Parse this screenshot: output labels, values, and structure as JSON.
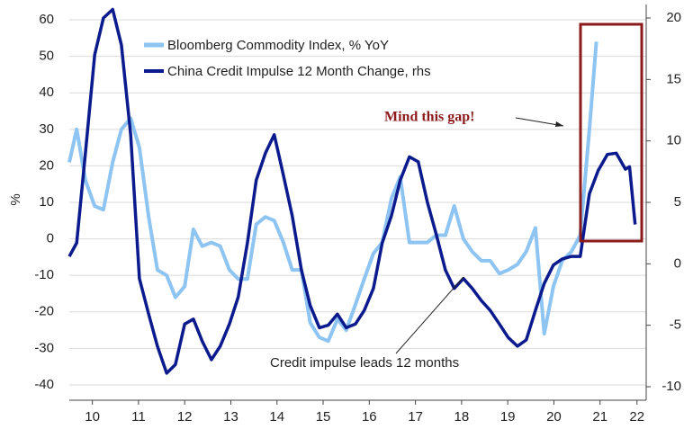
{
  "chart_data": {
    "type": "line",
    "y_label": "%",
    "xlim": [
      2010,
      2022.5
    ],
    "xticks": [
      {
        "value": 2010.5,
        "label": "10"
      },
      {
        "value": 2011.5,
        "label": "11"
      },
      {
        "value": 2012.5,
        "label": "12"
      },
      {
        "value": 2013.5,
        "label": "13"
      },
      {
        "value": 2014.5,
        "label": "14"
      },
      {
        "value": 2015.5,
        "label": "15"
      },
      {
        "value": 2016.5,
        "label": "16"
      },
      {
        "value": 2017.5,
        "label": "17"
      },
      {
        "value": 2018.5,
        "label": "18"
      },
      {
        "value": 2019.5,
        "label": "19"
      },
      {
        "value": 2020.5,
        "label": "20"
      },
      {
        "value": 2021.5,
        "label": "21"
      },
      {
        "value": 2022.3,
        "label": "22"
      }
    ],
    "ylim": [
      -44.2,
      64.2
    ],
    "yticks": [
      -40,
      -30,
      -20,
      -10,
      0,
      10,
      20,
      30,
      40,
      50,
      60
    ],
    "y2lim": [
      -11.1,
      21.1
    ],
    "y2ticks": [
      -10,
      -5,
      0,
      5,
      10,
      15,
      20
    ],
    "grid": true,
    "annotations": [
      "Mind this gap!",
      "Credit impulse leads 12 months"
    ],
    "series": [
      {
        "name": "Bloomberg Commodity Index, % YoY",
        "color": "#8ec4f2",
        "axis": "y",
        "x": [
          2010.0,
          2010.16,
          2010.35,
          2010.55,
          2010.74,
          2010.94,
          2011.13,
          2011.33,
          2011.52,
          2011.72,
          2011.91,
          2012.11,
          2012.3,
          2012.5,
          2012.69,
          2012.88,
          2013.08,
          2013.27,
          2013.47,
          2013.66,
          2013.86,
          2014.05,
          2014.25,
          2014.44,
          2014.64,
          2014.83,
          2015.03,
          2015.22,
          2015.42,
          2015.61,
          2015.81,
          2016.0,
          2016.2,
          2016.39,
          2016.59,
          2016.78,
          2016.98,
          2017.17,
          2017.37,
          2017.56,
          2017.76,
          2017.95,
          2018.15,
          2018.34,
          2018.54,
          2018.73,
          2018.93,
          2019.12,
          2019.32,
          2019.51,
          2019.71,
          2019.9,
          2020.1,
          2020.29,
          2020.49,
          2020.68,
          2020.88,
          2021.07,
          2021.27,
          2021.42
        ],
        "values": [
          21,
          30,
          16,
          9,
          8,
          21,
          30,
          33,
          25,
          6,
          -8.5,
          -10,
          -16,
          -13,
          2.6,
          -2,
          -1,
          -2,
          -8.5,
          -11,
          -11,
          4,
          6,
          5,
          -1,
          -8.5,
          -8.5,
          -23,
          -27,
          -28,
          -22,
          -25,
          -18,
          -11,
          -4,
          -1,
          11,
          17,
          -1,
          -1,
          -1,
          1,
          1,
          9,
          0,
          -3.5,
          -6,
          -6,
          -9.5,
          -8.5,
          -7,
          -3.5,
          3,
          -26,
          -13,
          -6,
          -3.5,
          1,
          30,
          54
        ]
      },
      {
        "name": "China Credit Impulse 12 Month Change, rhs",
        "color": "#0b1a8c",
        "axis": "y2",
        "x": [
          2010.0,
          2010.16,
          2010.35,
          2010.55,
          2010.74,
          2010.94,
          2011.13,
          2011.33,
          2011.52,
          2011.72,
          2011.91,
          2012.11,
          2012.3,
          2012.5,
          2012.69,
          2012.88,
          2013.08,
          2013.27,
          2013.47,
          2013.66,
          2013.86,
          2014.05,
          2014.25,
          2014.44,
          2014.64,
          2014.83,
          2015.03,
          2015.22,
          2015.42,
          2015.61,
          2015.81,
          2016.0,
          2016.2,
          2016.39,
          2016.59,
          2016.78,
          2016.98,
          2017.17,
          2017.37,
          2017.56,
          2017.76,
          2017.95,
          2018.15,
          2018.34,
          2018.54,
          2018.73,
          2018.93,
          2019.12,
          2019.32,
          2019.51,
          2019.71,
          2019.9,
          2020.1,
          2020.29,
          2020.49,
          2020.68,
          2020.88,
          2021.07,
          2021.27,
          2021.46,
          2021.66,
          2021.85,
          2022.05,
          2022.14,
          2022.26
        ],
        "values": [
          0.6,
          1.7,
          9,
          17,
          20,
          20.7,
          17.8,
          10.5,
          -1.2,
          -4.1,
          -6.7,
          -8.9,
          -8.2,
          -4.9,
          -4.5,
          -6.3,
          -7.8,
          -6.7,
          -4.9,
          -2.7,
          1.7,
          6.8,
          9,
          10.5,
          7.2,
          3.9,
          -0.5,
          -3.4,
          -5.2,
          -5,
          -4.1,
          -5.2,
          -4.9,
          -3.8,
          -2,
          1.7,
          3.9,
          6.8,
          8.7,
          8.3,
          5,
          2.4,
          -0.5,
          -2,
          -1.2,
          -2,
          -3,
          -3.8,
          -4.9,
          -6,
          -6.7,
          -6.2,
          -3.8,
          -1.6,
          -0.1,
          0.4,
          0.6,
          0.6,
          5.7,
          7.6,
          8.9,
          9,
          7.7,
          7.9,
          3.2
        ]
      }
    ]
  }
}
